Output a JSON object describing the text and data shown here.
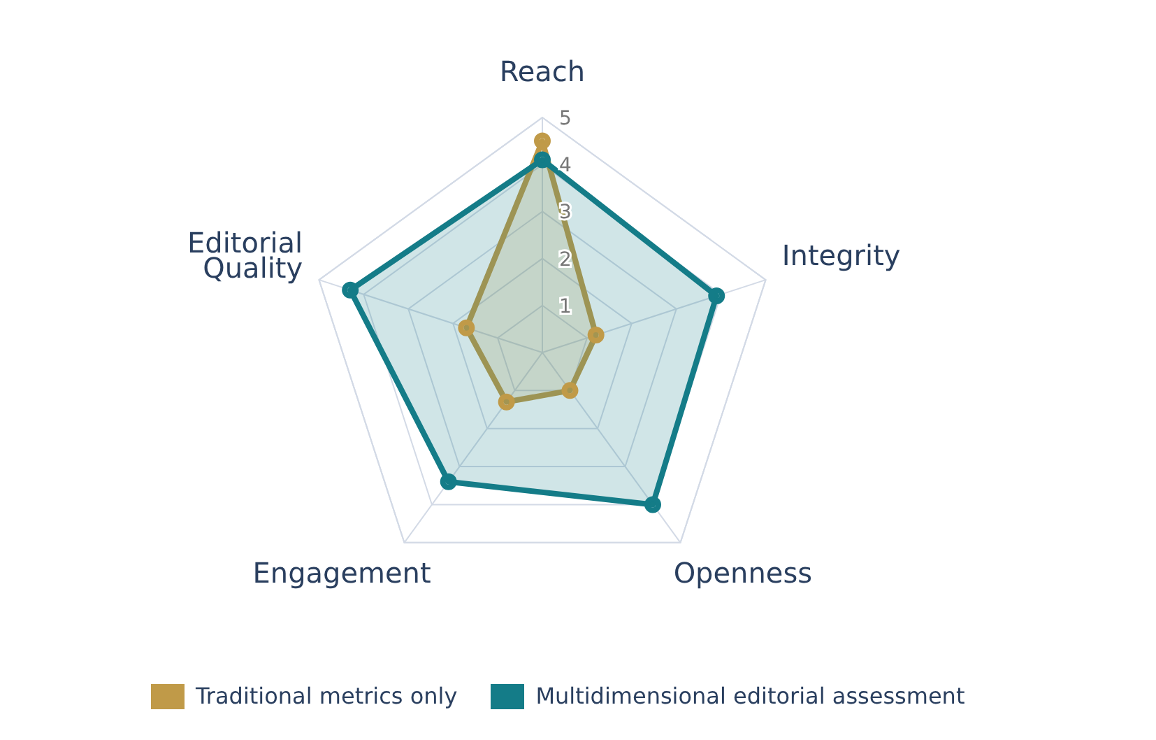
{
  "chart_data": {
    "type": "radar",
    "categories": [
      "Reach",
      "Integrity",
      "Openness",
      "Engagement",
      "Editorial Quality"
    ],
    "series": [
      {
        "name": "Traditional metrics only",
        "color": "#c09a48",
        "values": [
          4.5,
          1.2,
          1.0,
          1.3,
          1.7
        ]
      },
      {
        "name": "Multidimensional editorial assessment",
        "color": "#147c88",
        "values": [
          4.1,
          3.9,
          4.0,
          3.4,
          4.3
        ]
      }
    ],
    "ylim": [
      0,
      5
    ],
    "yticks": [
      1,
      2,
      3,
      4,
      5
    ],
    "legend": "bottom",
    "marker": "circle",
    "grid": true
  }
}
